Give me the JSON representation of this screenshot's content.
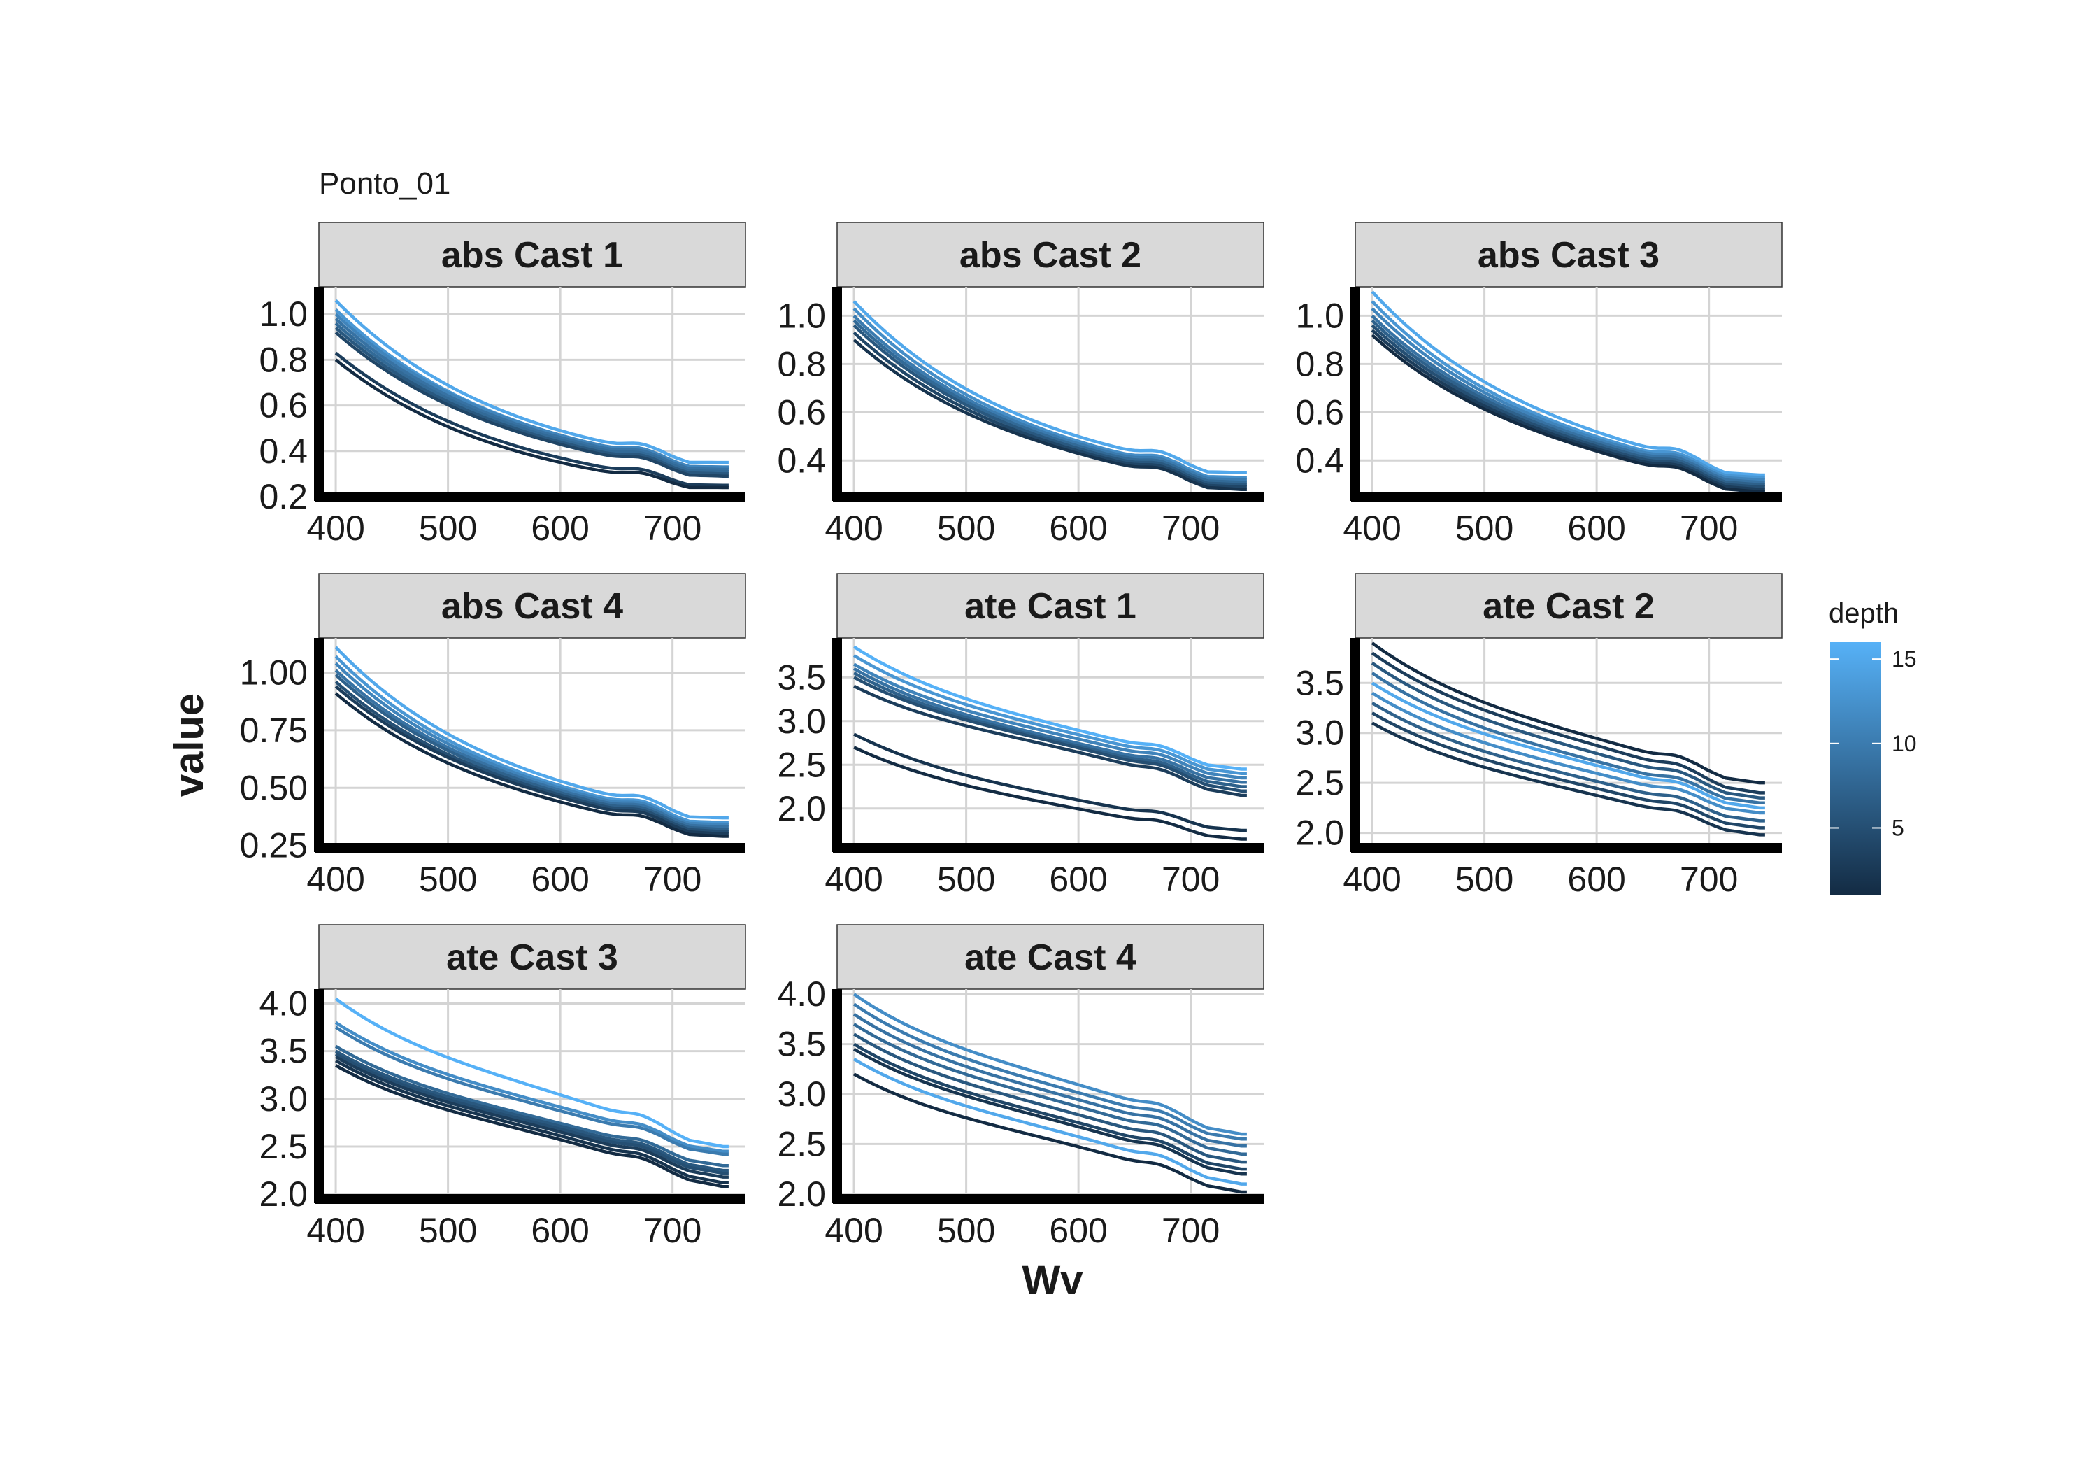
{
  "chart_data": {
    "type": "line",
    "title": "Ponto_01",
    "xlabel": "Wv",
    "ylabel": "value",
    "grid": true,
    "legend_placement": "right",
    "legend": {
      "title": "depth",
      "ticks": [
        5,
        10,
        15
      ],
      "range": [
        1,
        16
      ],
      "color_low": "#132b43",
      "color_high": "#56b1f7"
    },
    "colors": {
      "strip_fill": "#d9d9d9",
      "grid": "#d4d4d4",
      "axis": "#000000"
    },
    "x_ticks": [
      400,
      500,
      600,
      700
    ],
    "xlim": [
      385,
      765
    ],
    "panels": [
      {
        "label": "abs Cast 1",
        "ylim": [
          0.2,
          1.12
        ],
        "y_ticks": [
          0.2,
          0.4,
          0.6,
          0.8,
          1.0
        ],
        "y_tick_labels": [
          "0.2",
          "0.4",
          "0.6",
          "0.8",
          "1.0"
        ],
        "series": [
          {
            "depth": 15,
            "start": 1.06,
            "mid": 0.49,
            "end": 0.35
          },
          {
            "depth": 13,
            "start": 1.02,
            "mid": 0.47,
            "end": 0.33
          },
          {
            "depth": 11,
            "start": 1.0,
            "mid": 0.47,
            "end": 0.33
          },
          {
            "depth": 9,
            "start": 0.98,
            "mid": 0.46,
            "end": 0.32
          },
          {
            "depth": 8,
            "start": 0.96,
            "mid": 0.45,
            "end": 0.31
          },
          {
            "depth": 6,
            "start": 0.94,
            "mid": 0.44,
            "end": 0.3
          },
          {
            "depth": 4,
            "start": 0.92,
            "mid": 0.43,
            "end": 0.29
          },
          {
            "depth": 3,
            "start": 0.83,
            "mid": 0.37,
            "end": 0.25
          },
          {
            "depth": 1,
            "start": 0.8,
            "mid": 0.35,
            "end": 0.24
          }
        ]
      },
      {
        "label": "abs Cast 2",
        "ylim": [
          0.25,
          1.12
        ],
        "y_ticks": [
          0.4,
          0.6,
          0.8,
          1.0
        ],
        "y_tick_labels": [
          "0.4",
          "0.6",
          "0.8",
          "1.0"
        ],
        "series": [
          {
            "depth": 15,
            "start": 1.06,
            "mid": 0.5,
            "end": 0.35
          },
          {
            "depth": 12,
            "start": 1.03,
            "mid": 0.48,
            "end": 0.33
          },
          {
            "depth": 10,
            "start": 1.0,
            "mid": 0.47,
            "end": 0.32
          },
          {
            "depth": 8,
            "start": 0.98,
            "mid": 0.46,
            "end": 0.31
          },
          {
            "depth": 6,
            "start": 0.96,
            "mid": 0.45,
            "end": 0.3
          },
          {
            "depth": 4,
            "start": 0.93,
            "mid": 0.44,
            "end": 0.29
          },
          {
            "depth": 2,
            "start": 0.9,
            "mid": 0.43,
            "end": 0.28
          }
        ]
      },
      {
        "label": "abs Cast 3",
        "ylim": [
          0.25,
          1.12
        ],
        "y_ticks": [
          0.4,
          0.6,
          0.8,
          1.0
        ],
        "y_tick_labels": [
          "0.4",
          "0.6",
          "0.8",
          "1.0"
        ],
        "series": [
          {
            "depth": 15,
            "start": 1.1,
            "mid": 0.52,
            "end": 0.34
          },
          {
            "depth": 13,
            "start": 1.06,
            "mid": 0.5,
            "end": 0.33
          },
          {
            "depth": 11,
            "start": 1.03,
            "mid": 0.49,
            "end": 0.32
          },
          {
            "depth": 9,
            "start": 1.0,
            "mid": 0.48,
            "end": 0.31
          },
          {
            "depth": 7,
            "start": 0.98,
            "mid": 0.47,
            "end": 0.3
          },
          {
            "depth": 5,
            "start": 0.96,
            "mid": 0.46,
            "end": 0.29
          },
          {
            "depth": 3,
            "start": 0.94,
            "mid": 0.45,
            "end": 0.28
          },
          {
            "depth": 1,
            "start": 0.92,
            "mid": 0.44,
            "end": 0.27
          }
        ]
      },
      {
        "label": "abs Cast 4",
        "ylim": [
          0.24,
          1.15
        ],
        "y_ticks": [
          0.25,
          0.5,
          0.75,
          1.0
        ],
        "y_tick_labels": [
          "0.25",
          "0.50",
          "0.75",
          "1.00"
        ],
        "series": [
          {
            "depth": 15,
            "start": 1.11,
            "mid": 0.53,
            "end": 0.37
          },
          {
            "depth": 13,
            "start": 1.07,
            "mid": 0.51,
            "end": 0.35
          },
          {
            "depth": 11,
            "start": 1.04,
            "mid": 0.5,
            "end": 0.34
          },
          {
            "depth": 9,
            "start": 1.01,
            "mid": 0.49,
            "end": 0.33
          },
          {
            "depth": 7,
            "start": 0.99,
            "mid": 0.48,
            "end": 0.32
          },
          {
            "depth": 5,
            "start": 0.96,
            "mid": 0.47,
            "end": 0.31
          },
          {
            "depth": 3,
            "start": 0.94,
            "mid": 0.46,
            "end": 0.3
          },
          {
            "depth": 1,
            "start": 0.91,
            "mid": 0.44,
            "end": 0.29
          }
        ]
      },
      {
        "label": "ate Cast 1",
        "ylim": [
          1.55,
          3.95
        ],
        "y_ticks": [
          2.0,
          2.5,
          3.0,
          3.5
        ],
        "y_tick_labels": [
          "2.0",
          "2.5",
          "3.0",
          "3.5"
        ],
        "series": [
          {
            "depth": 16,
            "start": 3.85,
            "mid": 2.9,
            "end": 2.45
          },
          {
            "depth": 13,
            "start": 3.75,
            "mid": 2.85,
            "end": 2.4
          },
          {
            "depth": 11,
            "start": 3.65,
            "mid": 2.8,
            "end": 2.35
          },
          {
            "depth": 9,
            "start": 3.6,
            "mid": 2.75,
            "end": 2.3
          },
          {
            "depth": 7,
            "start": 3.55,
            "mid": 2.72,
            "end": 2.25
          },
          {
            "depth": 5,
            "start": 3.5,
            "mid": 2.7,
            "end": 2.2
          },
          {
            "depth": 3,
            "start": 3.4,
            "mid": 2.65,
            "end": 2.15
          },
          {
            "depth": 2,
            "start": 2.85,
            "mid": 2.1,
            "end": 1.75
          },
          {
            "depth": 1,
            "start": 2.7,
            "mid": 2.0,
            "end": 1.65
          }
        ]
      },
      {
        "label": "ate Cast 2",
        "ylim": [
          1.85,
          3.95
        ],
        "y_ticks": [
          2.0,
          2.5,
          3.0,
          3.5
        ],
        "y_tick_labels": [
          "2.0",
          "2.5",
          "3.0",
          "3.5"
        ],
        "series": [
          {
            "depth": 1,
            "start": 3.9,
            "mid": 2.95,
            "end": 2.5
          },
          {
            "depth": 3,
            "start": 3.8,
            "mid": 2.88,
            "end": 2.4
          },
          {
            "depth": 6,
            "start": 3.7,
            "mid": 2.8,
            "end": 2.35
          },
          {
            "depth": 9,
            "start": 3.6,
            "mid": 2.72,
            "end": 2.3
          },
          {
            "depth": 15,
            "start": 3.5,
            "mid": 2.68,
            "end": 2.25
          },
          {
            "depth": 12,
            "start": 3.4,
            "mid": 2.6,
            "end": 2.2
          },
          {
            "depth": 7,
            "start": 3.3,
            "mid": 2.52,
            "end": 2.12
          },
          {
            "depth": 4,
            "start": 3.2,
            "mid": 2.45,
            "end": 2.05
          },
          {
            "depth": 2,
            "start": 3.1,
            "mid": 2.38,
            "end": 1.98
          }
        ]
      },
      {
        "label": "ate Cast 3",
        "ylim": [
          1.95,
          4.15
        ],
        "y_ticks": [
          2.0,
          2.5,
          3.0,
          3.5,
          4.0
        ],
        "y_tick_labels": [
          "2.0",
          "2.5",
          "3.0",
          "3.5",
          "4.0"
        ],
        "series": [
          {
            "depth": 16,
            "start": 4.05,
            "mid": 3.05,
            "end": 2.5
          },
          {
            "depth": 12,
            "start": 3.8,
            "mid": 2.92,
            "end": 2.45
          },
          {
            "depth": 10,
            "start": 3.75,
            "mid": 2.88,
            "end": 2.42
          },
          {
            "depth": 8,
            "start": 3.55,
            "mid": 2.75,
            "end": 2.3
          },
          {
            "depth": 6,
            "start": 3.5,
            "mid": 2.72,
            "end": 2.25
          },
          {
            "depth": 5,
            "start": 3.47,
            "mid": 2.69,
            "end": 2.22
          },
          {
            "depth": 3,
            "start": 3.44,
            "mid": 2.66,
            "end": 2.18
          },
          {
            "depth": 2,
            "start": 3.4,
            "mid": 2.62,
            "end": 2.12
          },
          {
            "depth": 1,
            "start": 3.35,
            "mid": 2.58,
            "end": 2.08
          }
        ]
      },
      {
        "label": "ate Cast 4",
        "ylim": [
          1.95,
          4.05
        ],
        "y_ticks": [
          2.0,
          2.5,
          3.0,
          3.5,
          4.0
        ],
        "y_tick_labels": [
          "2.0",
          "2.5",
          "3.0",
          "3.5",
          "4.0"
        ],
        "series": [
          {
            "depth": 12,
            "start": 4.0,
            "mid": 3.1,
            "end": 2.6
          },
          {
            "depth": 10,
            "start": 3.9,
            "mid": 3.02,
            "end": 2.55
          },
          {
            "depth": 9,
            "start": 3.8,
            "mid": 2.95,
            "end": 2.48
          },
          {
            "depth": 8,
            "start": 3.7,
            "mid": 2.88,
            "end": 2.4
          },
          {
            "depth": 6,
            "start": 3.6,
            "mid": 2.8,
            "end": 2.32
          },
          {
            "depth": 4,
            "start": 3.5,
            "mid": 2.72,
            "end": 2.25
          },
          {
            "depth": 2,
            "start": 3.45,
            "mid": 2.68,
            "end": 2.2
          },
          {
            "depth": 15,
            "start": 3.35,
            "mid": 2.58,
            "end": 2.1
          },
          {
            "depth": 1,
            "start": 3.2,
            "mid": 2.48,
            "end": 2.02
          }
        ]
      }
    ]
  }
}
